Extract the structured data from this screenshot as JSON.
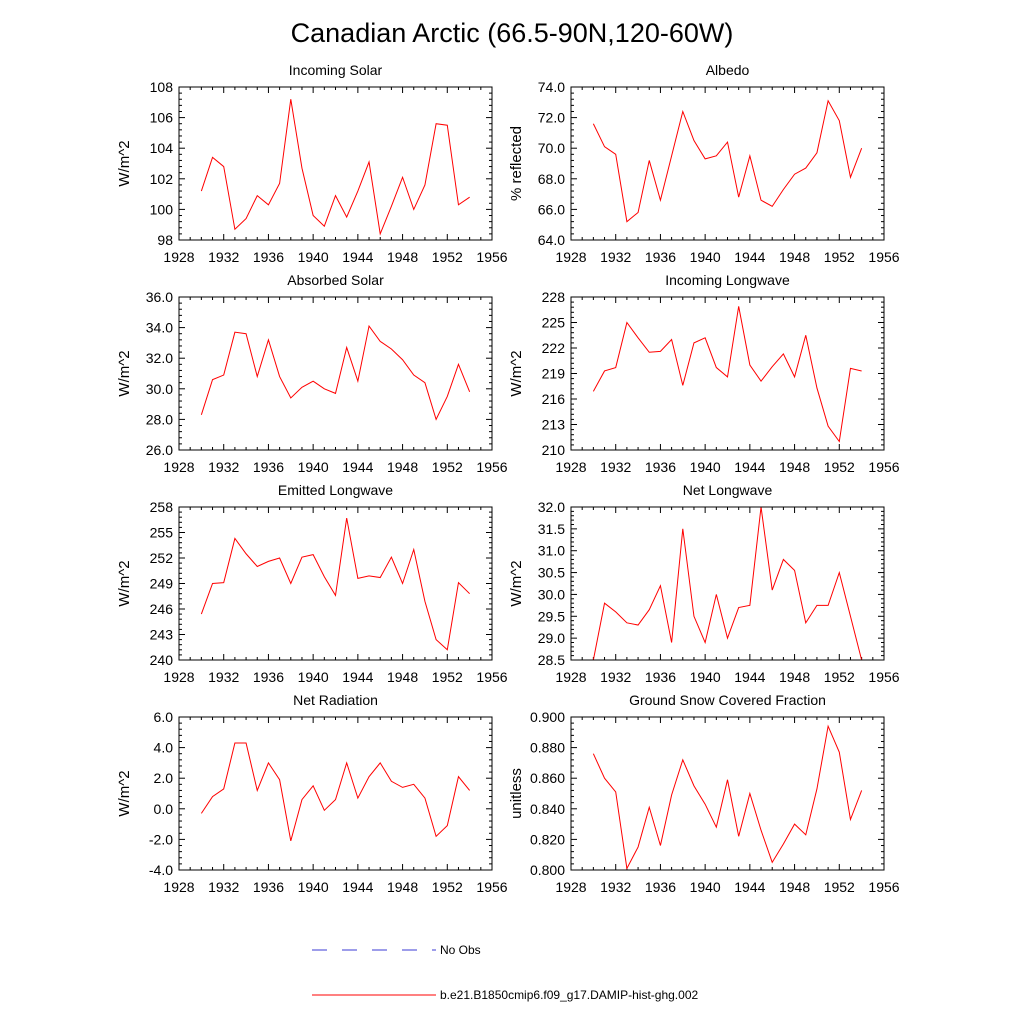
{
  "figure": {
    "title": "Canadian Arctic (66.5-90N,120-60W)"
  },
  "legend": {
    "entries": [
      {
        "label": "No Obs",
        "color": "#3b3bd6",
        "style": "dashed"
      },
      {
        "label": "b.e21.B1850cmip6.f09_g17.DAMIP-hist-ghg.002",
        "color": "#ff0000",
        "style": "solid"
      }
    ]
  },
  "colors": {
    "series": "#ff0000",
    "axes": "#000000",
    "obs": "#3b3bd6"
  },
  "chart_data": [
    {
      "type": "line",
      "title": "Incoming Solar",
      "ylabel": "W/m^2",
      "xlim": [
        1928,
        1956
      ],
      "ylim": [
        98,
        108
      ],
      "xticks": [
        "1928",
        "1932",
        "1936",
        "1940",
        "1944",
        "1948",
        "1952",
        "1956"
      ],
      "yticks": [
        "98",
        "100",
        "102",
        "104",
        "106",
        "108"
      ],
      "x": [
        1930,
        1931,
        1932,
        1933,
        1934,
        1935,
        1936,
        1937,
        1938,
        1939,
        1940,
        1941,
        1942,
        1943,
        1944,
        1945,
        1946,
        1947,
        1948,
        1949,
        1950,
        1951,
        1952,
        1953,
        1954
      ],
      "series": [
        {
          "values": [
            101.2,
            103.4,
            102.8,
            98.7,
            99.4,
            100.9,
            100.3,
            101.7,
            107.2,
            102.7,
            99.6,
            98.9,
            100.9,
            99.5,
            101.2,
            103.1,
            98.4,
            100.2,
            102.1,
            100.0,
            101.6,
            105.6,
            105.5,
            100.3,
            100.8
          ]
        }
      ]
    },
    {
      "type": "line",
      "title": "Albedo",
      "ylabel": "% reflected",
      "xlim": [
        1928,
        1956
      ],
      "ylim": [
        64.0,
        74.0
      ],
      "xticks": [
        "1928",
        "1932",
        "1936",
        "1940",
        "1944",
        "1948",
        "1952",
        "1956"
      ],
      "yticks": [
        "64.0",
        "66.0",
        "68.0",
        "70.0",
        "72.0",
        "74.0"
      ],
      "x": [
        1930,
        1931,
        1932,
        1933,
        1934,
        1935,
        1936,
        1937,
        1938,
        1939,
        1940,
        1941,
        1942,
        1943,
        1944,
        1945,
        1946,
        1947,
        1948,
        1949,
        1950,
        1951,
        1952,
        1953,
        1954
      ],
      "series": [
        {
          "values": [
            71.6,
            70.1,
            69.6,
            65.2,
            65.8,
            69.2,
            66.6,
            69.5,
            72.4,
            70.5,
            69.3,
            69.5,
            70.4,
            66.8,
            69.5,
            66.6,
            66.2,
            67.3,
            68.3,
            68.7,
            69.7,
            73.1,
            71.8,
            68.1,
            70.0
          ]
        }
      ]
    },
    {
      "type": "line",
      "title": "Absorbed Solar",
      "ylabel": "W/m^2",
      "xlim": [
        1928,
        1956
      ],
      "ylim": [
        26.0,
        36.0
      ],
      "xticks": [
        "1928",
        "1932",
        "1936",
        "1940",
        "1944",
        "1948",
        "1952",
        "1956"
      ],
      "yticks": [
        "26.0",
        "28.0",
        "30.0",
        "32.0",
        "34.0",
        "36.0"
      ],
      "x": [
        1930,
        1931,
        1932,
        1933,
        1934,
        1935,
        1936,
        1937,
        1938,
        1939,
        1940,
        1941,
        1942,
        1943,
        1944,
        1945,
        1946,
        1947,
        1948,
        1949,
        1950,
        1951,
        1952,
        1953,
        1954
      ],
      "series": [
        {
          "values": [
            28.3,
            30.6,
            30.9,
            33.7,
            33.6,
            30.8,
            33.2,
            30.8,
            29.4,
            30.1,
            30.5,
            30.0,
            29.7,
            32.7,
            30.5,
            34.1,
            33.1,
            32.6,
            31.9,
            30.9,
            30.4,
            28.0,
            29.5,
            31.6,
            29.8
          ]
        }
      ]
    },
    {
      "type": "line",
      "title": "Incoming Longwave",
      "ylabel": "W/m^2",
      "xlim": [
        1928,
        1956
      ],
      "ylim": [
        210,
        228
      ],
      "xticks": [
        "1928",
        "1932",
        "1936",
        "1940",
        "1944",
        "1948",
        "1952",
        "1956"
      ],
      "yticks": [
        "210",
        "213",
        "216",
        "219",
        "222",
        "225",
        "228"
      ],
      "x": [
        1930,
        1931,
        1932,
        1933,
        1934,
        1935,
        1936,
        1937,
        1938,
        1939,
        1940,
        1941,
        1942,
        1943,
        1944,
        1945,
        1946,
        1947,
        1948,
        1949,
        1950,
        1951,
        1952,
        1953,
        1954
      ],
      "series": [
        {
          "values": [
            216.9,
            219.3,
            219.7,
            225.0,
            223.2,
            221.5,
            221.6,
            223.0,
            217.6,
            222.6,
            223.2,
            219.7,
            218.6,
            226.9,
            220.0,
            218.1,
            219.8,
            221.3,
            218.6,
            223.5,
            217.3,
            212.8,
            211.0,
            219.6,
            219.3
          ]
        }
      ]
    },
    {
      "type": "line",
      "title": "Emitted Longwave",
      "ylabel": "W/m^2",
      "xlim": [
        1928,
        1956
      ],
      "ylim": [
        240,
        258
      ],
      "xticks": [
        "1928",
        "1932",
        "1936",
        "1940",
        "1944",
        "1948",
        "1952",
        "1956"
      ],
      "yticks": [
        "240",
        "243",
        "246",
        "249",
        "252",
        "255",
        "258"
      ],
      "x": [
        1930,
        1931,
        1932,
        1933,
        1934,
        1935,
        1936,
        1937,
        1938,
        1939,
        1940,
        1941,
        1942,
        1943,
        1944,
        1945,
        1946,
        1947,
        1948,
        1949,
        1950,
        1951,
        1952,
        1953,
        1954
      ],
      "series": [
        {
          "values": [
            245.4,
            249.0,
            249.1,
            254.3,
            252.5,
            251.0,
            251.6,
            252.0,
            249.0,
            252.1,
            252.4,
            249.8,
            247.6,
            256.7,
            249.6,
            249.9,
            249.7,
            252.1,
            249.0,
            253.0,
            246.9,
            242.4,
            241.2,
            249.1,
            247.8
          ]
        }
      ]
    },
    {
      "type": "line",
      "title": "Net Longwave",
      "ylabel": "W/m^2",
      "xlim": [
        1928,
        1956
      ],
      "ylim": [
        28.5,
        32.0
      ],
      "xticks": [
        "1928",
        "1932",
        "1936",
        "1940",
        "1944",
        "1948",
        "1952",
        "1956"
      ],
      "yticks": [
        "28.5",
        "29.0",
        "29.5",
        "30.0",
        "30.5",
        "31.0",
        "31.5",
        "32.0"
      ],
      "x": [
        1930,
        1931,
        1932,
        1933,
        1934,
        1935,
        1936,
        1937,
        1938,
        1939,
        1940,
        1941,
        1942,
        1943,
        1944,
        1945,
        1946,
        1947,
        1948,
        1949,
        1950,
        1951,
        1952,
        1953,
        1954
      ],
      "series": [
        {
          "values": [
            28.5,
            29.8,
            29.6,
            29.35,
            29.3,
            29.65,
            30.2,
            28.9,
            31.5,
            29.5,
            28.9,
            30.0,
            29.0,
            29.7,
            29.75,
            32.0,
            30.1,
            30.8,
            30.55,
            29.35,
            29.75,
            29.75,
            30.5,
            29.5,
            28.5
          ]
        }
      ]
    },
    {
      "type": "line",
      "title": "Net Radiation",
      "ylabel": "W/m^2",
      "xlim": [
        1928,
        1956
      ],
      "ylim": [
        -4.0,
        6.0
      ],
      "xticks": [
        "1928",
        "1932",
        "1936",
        "1940",
        "1944",
        "1948",
        "1952",
        "1956"
      ],
      "yticks": [
        "-4.0",
        "-2.0",
        "0.0",
        "2.0",
        "4.0",
        "6.0"
      ],
      "x": [
        1930,
        1931,
        1932,
        1933,
        1934,
        1935,
        1936,
        1937,
        1938,
        1939,
        1940,
        1941,
        1942,
        1943,
        1944,
        1945,
        1946,
        1947,
        1948,
        1949,
        1950,
        1951,
        1952,
        1953,
        1954
      ],
      "series": [
        {
          "values": [
            -0.3,
            0.8,
            1.3,
            4.3,
            4.3,
            1.2,
            3.0,
            1.9,
            -2.1,
            0.6,
            1.5,
            -0.1,
            0.6,
            3.0,
            0.7,
            2.1,
            3.0,
            1.8,
            1.4,
            1.6,
            0.7,
            -1.8,
            -1.1,
            2.1,
            1.2
          ]
        }
      ]
    },
    {
      "type": "line",
      "title": "Ground Snow Covered Fraction",
      "ylabel": "unitless",
      "xlim": [
        1928,
        1956
      ],
      "ylim": [
        0.8,
        0.9
      ],
      "xticks": [
        "1928",
        "1932",
        "1936",
        "1940",
        "1944",
        "1948",
        "1952",
        "1956"
      ],
      "yticks": [
        "0.800",
        "0.820",
        "0.840",
        "0.860",
        "0.880",
        "0.900"
      ],
      "x": [
        1930,
        1931,
        1932,
        1933,
        1934,
        1935,
        1936,
        1937,
        1938,
        1939,
        1940,
        1941,
        1942,
        1943,
        1944,
        1945,
        1946,
        1947,
        1948,
        1949,
        1950,
        1951,
        1952,
        1953,
        1954
      ],
      "series": [
        {
          "values": [
            0.876,
            0.86,
            0.851,
            0.801,
            0.815,
            0.841,
            0.816,
            0.849,
            0.872,
            0.855,
            0.843,
            0.828,
            0.859,
            0.822,
            0.85,
            0.826,
            0.805,
            0.817,
            0.83,
            0.823,
            0.853,
            0.894,
            0.877,
            0.833,
            0.852
          ]
        }
      ]
    }
  ]
}
